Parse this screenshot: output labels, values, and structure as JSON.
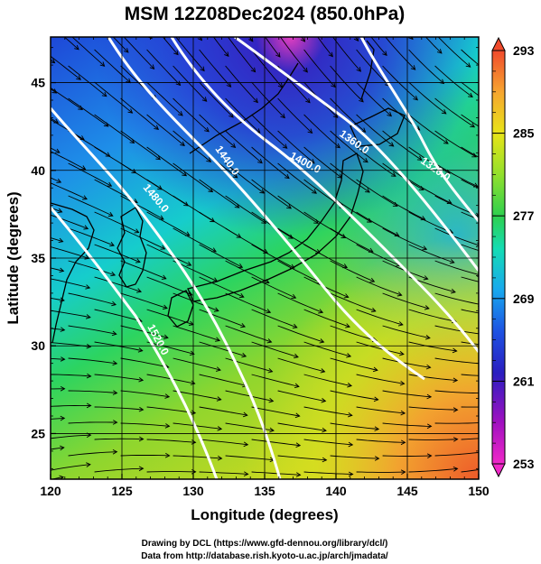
{
  "chart_data": {
    "type": "heatmap",
    "title": "MSM 12Z08Dec2024 (850.0hPa)",
    "xlabel": "Longitude (degrees)",
    "ylabel": "Latitude  (degrees)",
    "xlim": [
      120,
      150
    ],
    "ylim": [
      22.4,
      47.6
    ],
    "x_ticks": [
      "120",
      "125",
      "130",
      "135",
      "140",
      "145",
      "150"
    ],
    "y_ticks": [
      "25",
      "30",
      "35",
      "40",
      "45"
    ],
    "grid": true,
    "colorbar": {
      "range": [
        253,
        293
      ],
      "labels": [
        "293",
        "285",
        "277",
        "269",
        "261",
        "253"
      ],
      "colors": [
        "#f04a2c",
        "#f6a530",
        "#e8e418",
        "#92e02c",
        "#2ed04e",
        "#14dcb4",
        "#18a8ee",
        "#1e52e2",
        "#2a1ec0",
        "#a010c0",
        "#f028c8"
      ]
    },
    "contours": {
      "labels": [
        "1360.0",
        "1400.0",
        "1440.0",
        "1480.0",
        "1320.0",
        "1520.0"
      ]
    }
  },
  "credits": {
    "line1": "Drawing by DCL (https://www.gfd-dennou.org/library/dcl/)",
    "line2": "Data from http://database.rish.kyoto-u.ac.jp/arch/jmadata/"
  }
}
